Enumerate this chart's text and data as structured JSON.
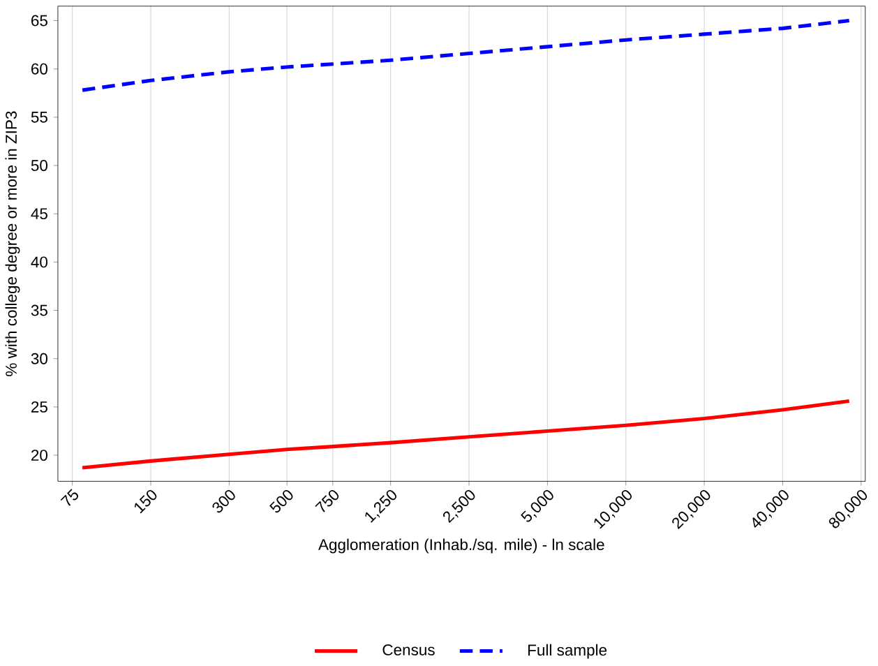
{
  "chart_data": {
    "type": "line",
    "xlabel": "Agglomeration (Inhab./sq. mile) - ln scale",
    "ylabel": "% with college degree or more in ZIP3",
    "log": "x",
    "grid": "x",
    "legend": "bottom",
    "marker": "none",
    "xlim": [
      66,
      83000
    ],
    "ylim": [
      17.3,
      66.5
    ],
    "xticks": [
      75,
      150,
      300,
      500,
      750,
      {
        "value": 1250,
        "label": "1,250"
      },
      {
        "value": 2500,
        "label": "2,500"
      },
      {
        "value": 5000,
        "label": "5,000"
      },
      {
        "value": 10000,
        "label": "10,000"
      },
      {
        "value": 20000,
        "label": "20,000"
      },
      {
        "value": 40000,
        "label": "40,000"
      },
      {
        "value": 80000,
        "label": "80,000"
      }
    ],
    "yticks": [
      20,
      25,
      30,
      35,
      40,
      45,
      50,
      55,
      60,
      65
    ],
    "x": [
      82,
      150,
      300,
      500,
      750,
      1250,
      2500,
      5000,
      10000,
      20000,
      40000,
      72000
    ],
    "series": [
      {
        "name": "Census",
        "color": "#ff0000",
        "line_style": "solid",
        "values": [
          18.7,
          19.4,
          20.1,
          20.6,
          20.9,
          21.3,
          21.9,
          22.5,
          23.1,
          23.8,
          24.7,
          25.6
        ]
      },
      {
        "name": "Full sample",
        "color": "#0000ff",
        "line_style": "dashed",
        "values": [
          57.8,
          58.8,
          59.7,
          60.2,
          60.5,
          60.9,
          61.6,
          62.3,
          63.0,
          63.6,
          64.2,
          65.0
        ]
      }
    ]
  }
}
